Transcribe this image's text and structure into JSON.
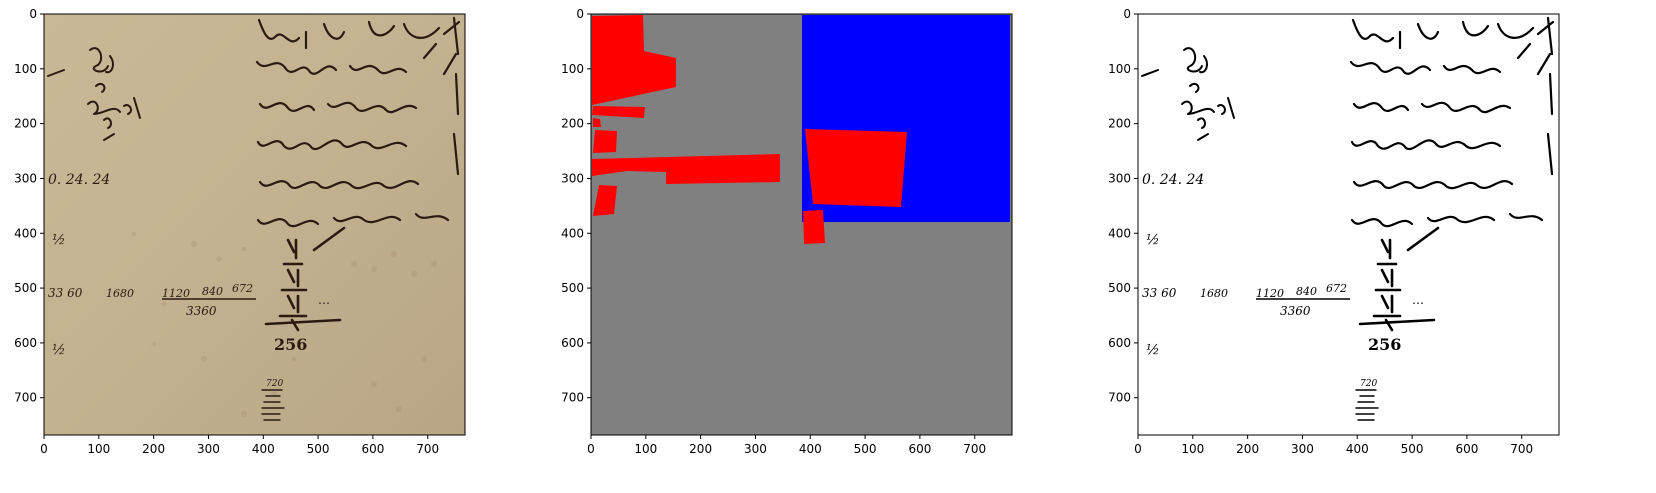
{
  "figure": {
    "panels": [
      {
        "id": "manuscript",
        "kind": "image",
        "xlim": [
          0,
          768
        ],
        "ylim": [
          768,
          0
        ],
        "xticks": [
          "0",
          "100",
          "200",
          "300",
          "400",
          "500",
          "600",
          "700"
        ],
        "yticks": [
          "0",
          "100",
          "200",
          "300",
          "400",
          "500",
          "600",
          "700"
        ]
      },
      {
        "id": "segmentation-mask",
        "kind": "image",
        "xlim": [
          0,
          768
        ],
        "ylim": [
          768,
          0
        ],
        "xticks": [
          "0",
          "100",
          "200",
          "300",
          "400",
          "500",
          "600",
          "700"
        ],
        "yticks": [
          "0",
          "100",
          "200",
          "300",
          "400",
          "500",
          "600",
          "700"
        ]
      },
      {
        "id": "binarized",
        "kind": "image",
        "xlim": [
          0,
          768
        ],
        "ylim": [
          768,
          0
        ],
        "xticks": [
          "0",
          "100",
          "200",
          "300",
          "400",
          "500",
          "600",
          "700"
        ],
        "yticks": [
          "0",
          "100",
          "200",
          "300",
          "400",
          "500",
          "600",
          "700"
        ]
      }
    ]
  },
  "colors": {
    "parchment": "#c4b492",
    "ink": "#2a1a12",
    "mask_background": "#808080",
    "mask_red": "#ff0000",
    "mask_blue": "#0000ff",
    "binary_ink": "#000000",
    "binary_background": "#ffffff"
  },
  "manuscript_text": {
    "line1": "0. 24. 24",
    "line2": "33 60",
    "line3": "1680",
    "line4": "1120",
    "line5": "840",
    "line6": "672",
    "line7": "3360",
    "line8": "256",
    "line9": "720"
  }
}
